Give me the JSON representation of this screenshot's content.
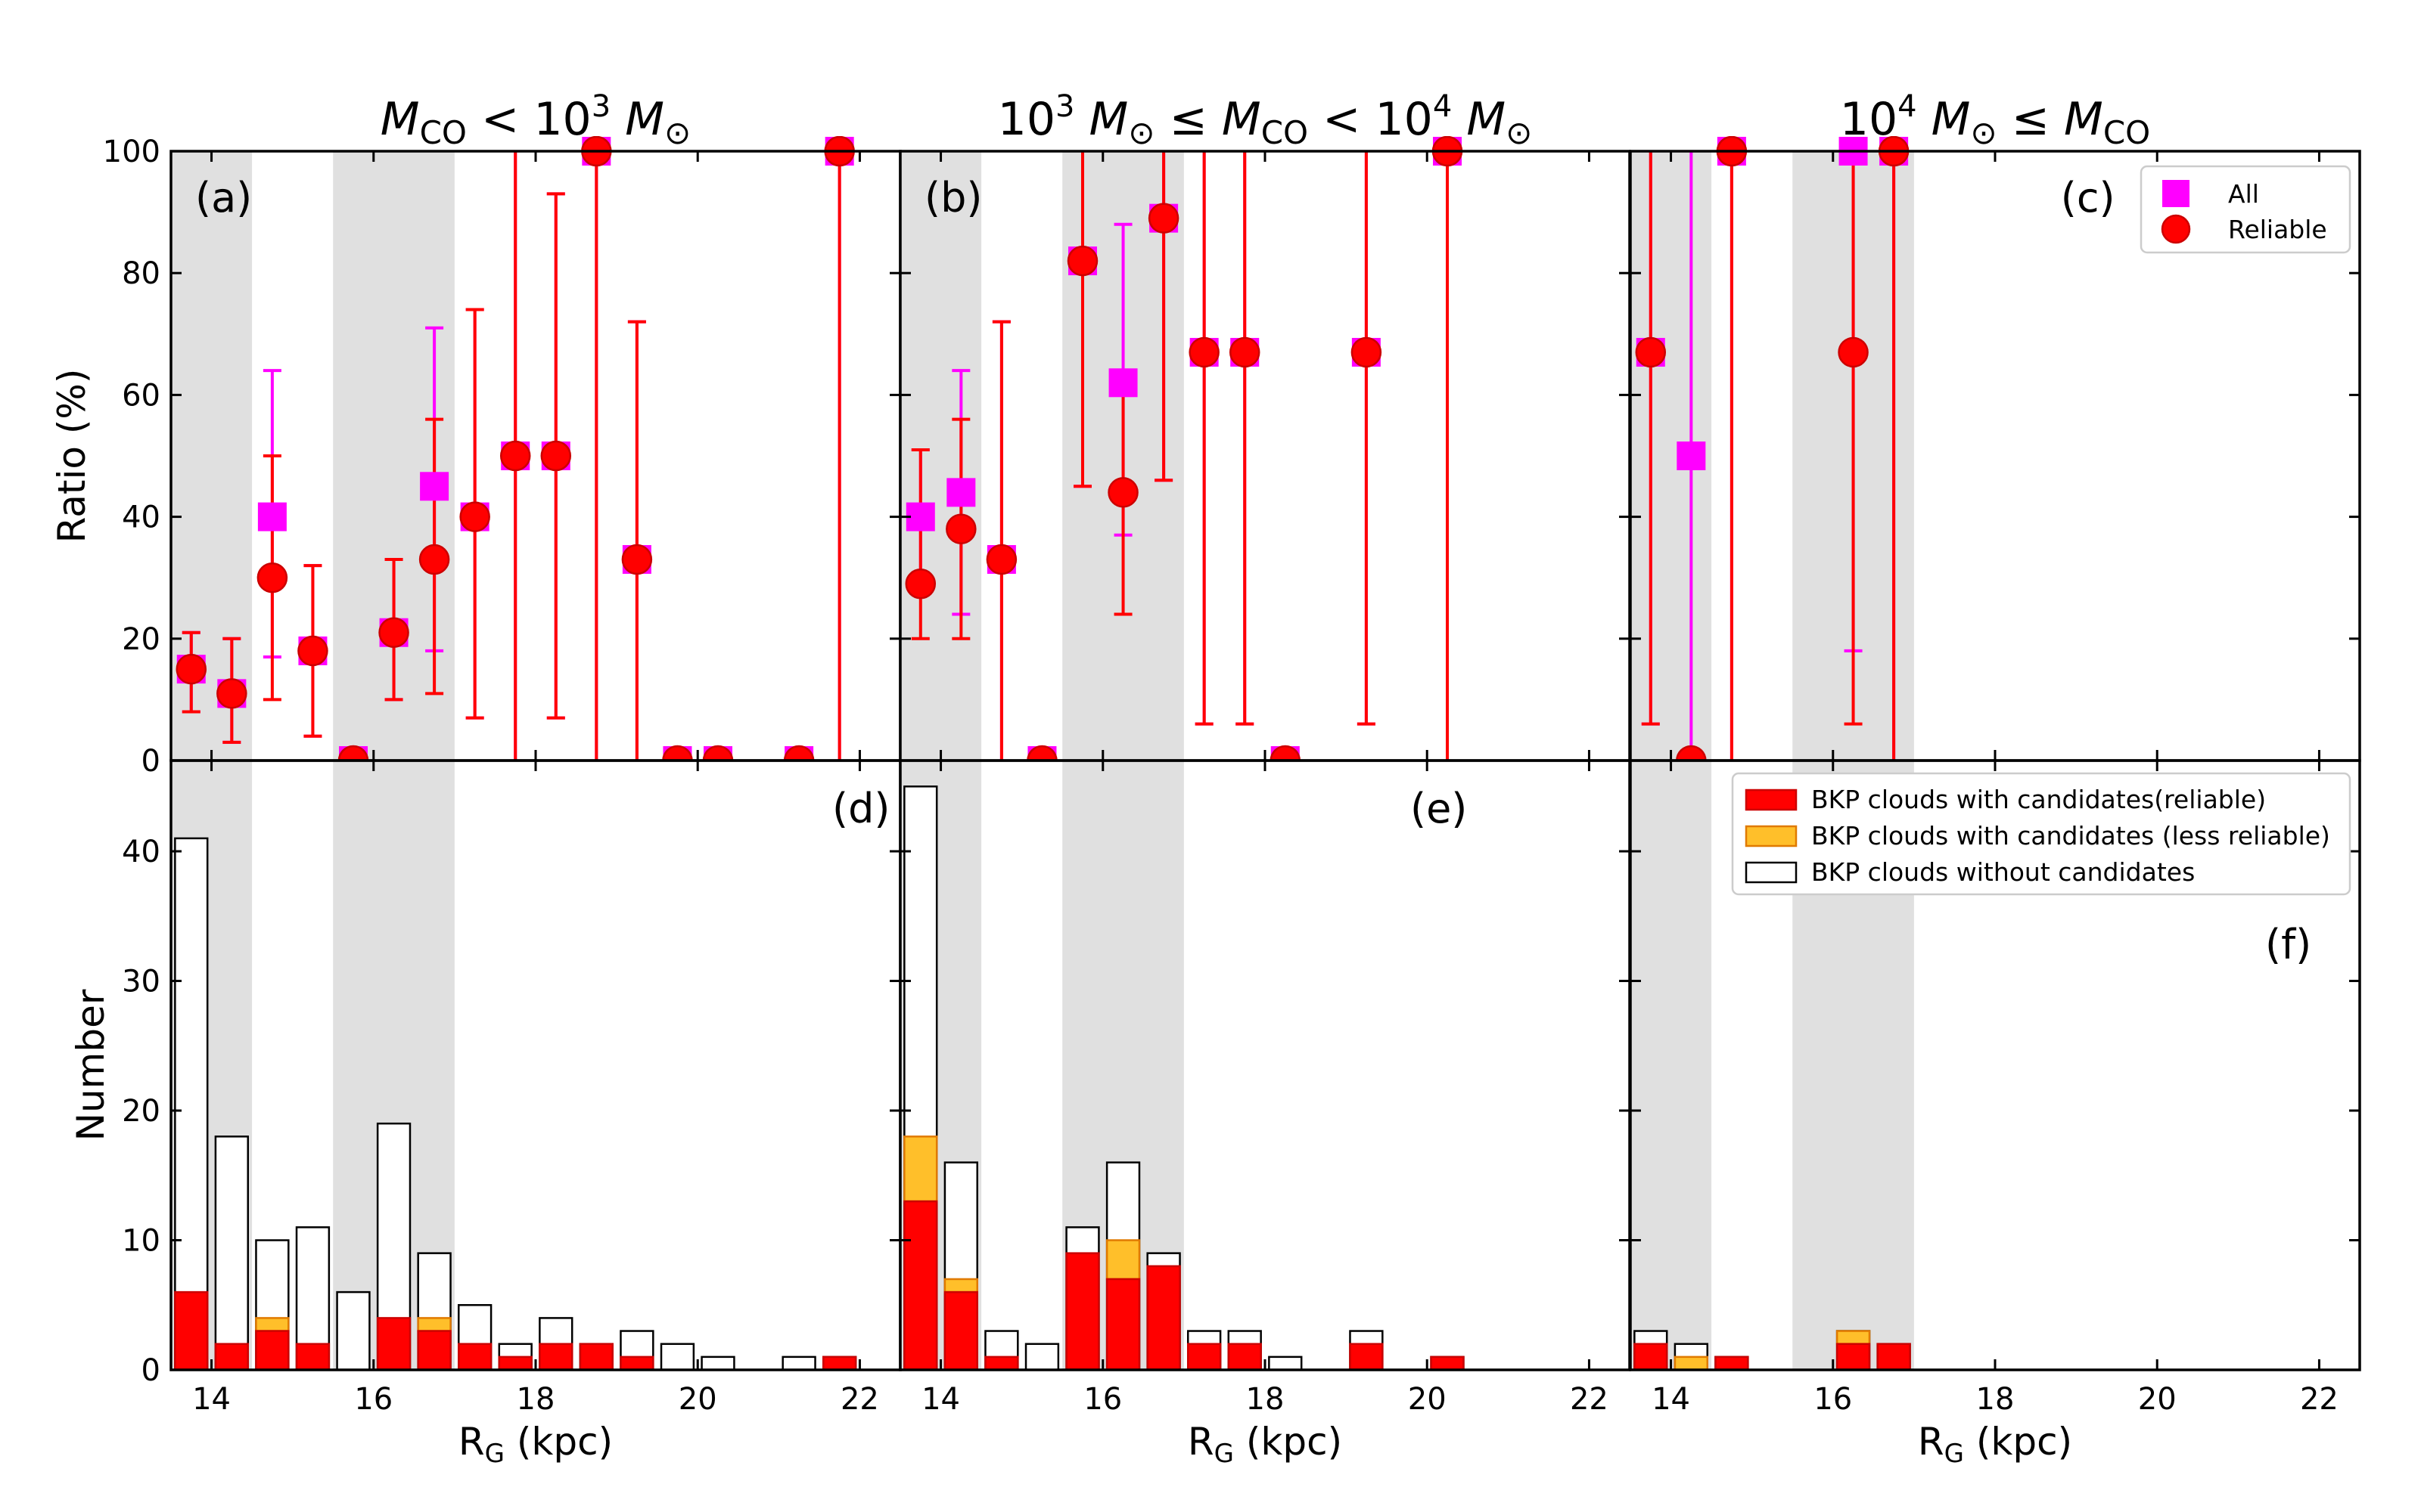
{
  "colors": {
    "shade": "#e0e0e0",
    "all": "#ff00ff",
    "reliable": "#ff0000",
    "reliable_edge": "#cc0000",
    "less_reliable": "#ffbf2a",
    "less_reliable_edge": "#e07a00",
    "without": "#ffffff"
  },
  "chart_data": {
    "type": "bar",
    "x_label": "R",
    "x_label_sub": "G",
    "x_label_unit": "(kpc)",
    "x_range": [
      13.5,
      22.5
    ],
    "x_ticks": [
      14,
      16,
      18,
      20,
      22
    ],
    "bar_width": 0.4,
    "shaded_ranges": [
      [
        13.5,
        14.5
      ],
      [
        15.5,
        17.0
      ]
    ],
    "top_y_label": "Ratio (%)",
    "top_y_range": [
      0,
      100
    ],
    "top_y_ticks": [
      0,
      20,
      40,
      60,
      80,
      100
    ],
    "bottom_y_label": "Number",
    "bottom_y_range": [
      0,
      47
    ],
    "bottom_y_ticks": [
      0,
      10,
      20,
      30,
      40
    ],
    "legend_top": [
      "All",
      "Reliable"
    ],
    "legend_bottom": [
      "BKP clouds with candidates(reliable)",
      "BKP clouds with candidates (less reliable)",
      "BKP clouds without candidates"
    ],
    "columns": [
      {
        "title": [
          "M",
          "CO",
          " < 10",
          "3",
          " M",
          "⊙"
        ],
        "letter_top": "(a)",
        "letter_bottom": "(d)",
        "ratio_all": [
          {
            "x": 13.75,
            "y": 15,
            "lo": 8,
            "hi": 21
          },
          {
            "x": 14.25,
            "y": 11,
            "lo": 3,
            "hi": 20
          },
          {
            "x": 14.75,
            "y": 40,
            "lo": 17,
            "hi": 64
          },
          {
            "x": 15.25,
            "y": 18,
            "lo": 4,
            "hi": 32
          },
          {
            "x": 15.75,
            "y": 0,
            "lo": 0,
            "hi": 0
          },
          {
            "x": 16.25,
            "y": 21,
            "lo": 10,
            "hi": 33
          },
          {
            "x": 16.75,
            "y": 45,
            "lo": 18,
            "hi": 71
          },
          {
            "x": 17.25,
            "y": 40,
            "lo": 7,
            "hi": 74
          },
          {
            "x": 17.75,
            "y": 50,
            "lo": 0,
            "hi": 100
          },
          {
            "x": 18.25,
            "y": 50,
            "lo": 7,
            "hi": 93
          },
          {
            "x": 18.75,
            "y": 100,
            "lo": 0,
            "hi": 100
          },
          {
            "x": 19.25,
            "y": 33,
            "lo": 0,
            "hi": 72
          },
          {
            "x": 19.75,
            "y": 0,
            "lo": 0,
            "hi": 0
          },
          {
            "x": 20.25,
            "y": 0,
            "lo": 0,
            "hi": 0
          },
          {
            "x": 21.25,
            "y": 0,
            "lo": 0,
            "hi": 0
          },
          {
            "x": 21.75,
            "y": 100,
            "lo": 0,
            "hi": 100
          }
        ],
        "ratio_reliable": [
          {
            "x": 13.75,
            "y": 15,
            "lo": 8,
            "hi": 21
          },
          {
            "x": 14.25,
            "y": 11,
            "lo": 3,
            "hi": 20
          },
          {
            "x": 14.75,
            "y": 30,
            "lo": 10,
            "hi": 50
          },
          {
            "x": 15.25,
            "y": 18,
            "lo": 4,
            "hi": 32
          },
          {
            "x": 15.75,
            "y": 0,
            "lo": 0,
            "hi": 0
          },
          {
            "x": 16.25,
            "y": 21,
            "lo": 10,
            "hi": 33
          },
          {
            "x": 16.75,
            "y": 33,
            "lo": 11,
            "hi": 56
          },
          {
            "x": 17.25,
            "y": 40,
            "lo": 7,
            "hi": 74
          },
          {
            "x": 17.75,
            "y": 50,
            "lo": 0,
            "hi": 100
          },
          {
            "x": 18.25,
            "y": 50,
            "lo": 7,
            "hi": 93
          },
          {
            "x": 18.75,
            "y": 100,
            "lo": 0,
            "hi": 100
          },
          {
            "x": 19.25,
            "y": 33,
            "lo": 0,
            "hi": 72
          },
          {
            "x": 19.75,
            "y": 0,
            "lo": 0,
            "hi": 0
          },
          {
            "x": 20.25,
            "y": 0,
            "lo": 0,
            "hi": 0
          },
          {
            "x": 21.25,
            "y": 0,
            "lo": 0,
            "hi": 0
          },
          {
            "x": 21.75,
            "y": 100,
            "lo": 0,
            "hi": 100
          }
        ],
        "bars": [
          {
            "x": 13.75,
            "reliable": 6,
            "less_reliable": 0,
            "total": 41
          },
          {
            "x": 14.25,
            "reliable": 2,
            "less_reliable": 0,
            "total": 18
          },
          {
            "x": 14.75,
            "reliable": 3,
            "less_reliable": 1,
            "total": 10
          },
          {
            "x": 15.25,
            "reliable": 2,
            "less_reliable": 0,
            "total": 11
          },
          {
            "x": 15.75,
            "reliable": 0,
            "less_reliable": 0,
            "total": 6
          },
          {
            "x": 16.25,
            "reliable": 4,
            "less_reliable": 0,
            "total": 19
          },
          {
            "x": 16.75,
            "reliable": 3,
            "less_reliable": 1,
            "total": 9
          },
          {
            "x": 17.25,
            "reliable": 2,
            "less_reliable": 0,
            "total": 5
          },
          {
            "x": 17.75,
            "reliable": 1,
            "less_reliable": 0,
            "total": 2
          },
          {
            "x": 18.25,
            "reliable": 2,
            "less_reliable": 0,
            "total": 4
          },
          {
            "x": 18.75,
            "reliable": 2,
            "less_reliable": 0,
            "total": 2
          },
          {
            "x": 19.25,
            "reliable": 1,
            "less_reliable": 0,
            "total": 3
          },
          {
            "x": 19.75,
            "reliable": 0,
            "less_reliable": 0,
            "total": 2
          },
          {
            "x": 20.25,
            "reliable": 0,
            "less_reliable": 0,
            "total": 1
          },
          {
            "x": 21.25,
            "reliable": 0,
            "less_reliable": 0,
            "total": 1
          },
          {
            "x": 21.75,
            "reliable": 1,
            "less_reliable": 0,
            "total": 1
          }
        ]
      },
      {
        "title": [
          "10",
          "3",
          " M",
          "⊙",
          " ≤ M",
          "CO",
          " < 10",
          "4",
          " M",
          "⊙"
        ],
        "letter_top": "(b)",
        "letter_bottom": "(e)",
        "ratio_all": [
          {
            "x": 13.75,
            "y": 40,
            "lo": 29,
            "hi": 51
          },
          {
            "x": 14.25,
            "y": 44,
            "lo": 24,
            "hi": 64
          },
          {
            "x": 14.75,
            "y": 33,
            "lo": 0,
            "hi": 72
          },
          {
            "x": 15.25,
            "y": 0,
            "lo": 0,
            "hi": 0
          },
          {
            "x": 15.75,
            "y": 82,
            "lo": 45,
            "hi": 100
          },
          {
            "x": 16.25,
            "y": 62,
            "lo": 37,
            "hi": 88
          },
          {
            "x": 16.75,
            "y": 89,
            "lo": 46,
            "hi": 100
          },
          {
            "x": 17.25,
            "y": 67,
            "lo": 6,
            "hi": 100
          },
          {
            "x": 17.75,
            "y": 67,
            "lo": 6,
            "hi": 100
          },
          {
            "x": 18.25,
            "y": 0,
            "lo": 0,
            "hi": 0
          },
          {
            "x": 19.25,
            "y": 67,
            "lo": 6,
            "hi": 100
          },
          {
            "x": 20.25,
            "y": 100,
            "lo": 0,
            "hi": 100
          }
        ],
        "ratio_reliable": [
          {
            "x": 13.75,
            "y": 29,
            "lo": 20,
            "hi": 51
          },
          {
            "x": 14.25,
            "y": 38,
            "lo": 20,
            "hi": 56
          },
          {
            "x": 14.75,
            "y": 33,
            "lo": 0,
            "hi": 72
          },
          {
            "x": 15.25,
            "y": 0,
            "lo": 0,
            "hi": 0
          },
          {
            "x": 15.75,
            "y": 82,
            "lo": 45,
            "hi": 100
          },
          {
            "x": 16.25,
            "y": 44,
            "lo": 24,
            "hi": 62
          },
          {
            "x": 16.75,
            "y": 89,
            "lo": 46,
            "hi": 100
          },
          {
            "x": 17.25,
            "y": 67,
            "lo": 6,
            "hi": 100
          },
          {
            "x": 17.75,
            "y": 67,
            "lo": 6,
            "hi": 100
          },
          {
            "x": 18.25,
            "y": 0,
            "lo": 0,
            "hi": 0
          },
          {
            "x": 19.25,
            "y": 67,
            "lo": 6,
            "hi": 100
          },
          {
            "x": 20.25,
            "y": 100,
            "lo": 0,
            "hi": 100
          }
        ],
        "bars": [
          {
            "x": 13.75,
            "reliable": 13,
            "less_reliable": 5,
            "total": 45
          },
          {
            "x": 14.25,
            "reliable": 6,
            "less_reliable": 1,
            "total": 16
          },
          {
            "x": 14.75,
            "reliable": 1,
            "less_reliable": 0,
            "total": 3
          },
          {
            "x": 15.25,
            "reliable": 0,
            "less_reliable": 0,
            "total": 2
          },
          {
            "x": 15.75,
            "reliable": 9,
            "less_reliable": 0,
            "total": 11
          },
          {
            "x": 16.25,
            "reliable": 7,
            "less_reliable": 3,
            "total": 16
          },
          {
            "x": 16.75,
            "reliable": 8,
            "less_reliable": 0,
            "total": 9
          },
          {
            "x": 17.25,
            "reliable": 2,
            "less_reliable": 0,
            "total": 3
          },
          {
            "x": 17.75,
            "reliable": 2,
            "less_reliable": 0,
            "total": 3
          },
          {
            "x": 18.25,
            "reliable": 0,
            "less_reliable": 0,
            "total": 1
          },
          {
            "x": 19.25,
            "reliable": 2,
            "less_reliable": 0,
            "total": 3
          },
          {
            "x": 20.25,
            "reliable": 1,
            "less_reliable": 0,
            "total": 1
          }
        ]
      },
      {
        "title": [
          "10",
          "4",
          " M",
          "⊙",
          " ≤ M",
          "CO"
        ],
        "letter_top": "(c)",
        "letter_bottom": "(f)",
        "ratio_all": [
          {
            "x": 13.75,
            "y": 67,
            "lo": 6,
            "hi": 100
          },
          {
            "x": 14.25,
            "y": 50,
            "lo": 0,
            "hi": 100
          },
          {
            "x": 14.75,
            "y": 100,
            "lo": 0,
            "hi": 100
          },
          {
            "x": 16.25,
            "y": 100,
            "lo": 18,
            "hi": 100
          },
          {
            "x": 16.75,
            "y": 100,
            "lo": 0,
            "hi": 100
          }
        ],
        "ratio_reliable": [
          {
            "x": 13.75,
            "y": 67,
            "lo": 6,
            "hi": 100
          },
          {
            "x": 14.25,
            "y": 0,
            "lo": 0,
            "hi": 0
          },
          {
            "x": 14.75,
            "y": 100,
            "lo": 0,
            "hi": 100
          },
          {
            "x": 16.25,
            "y": 67,
            "lo": 6,
            "hi": 100
          },
          {
            "x": 16.75,
            "y": 100,
            "lo": 0,
            "hi": 100
          }
        ],
        "bars": [
          {
            "x": 13.75,
            "reliable": 2,
            "less_reliable": 0,
            "total": 3
          },
          {
            "x": 14.25,
            "reliable": 0,
            "less_reliable": 1,
            "total": 2
          },
          {
            "x": 14.75,
            "reliable": 1,
            "less_reliable": 0,
            "total": 1
          },
          {
            "x": 16.25,
            "reliable": 2,
            "less_reliable": 1,
            "total": 3
          },
          {
            "x": 16.75,
            "reliable": 2,
            "less_reliable": 0,
            "total": 2
          }
        ]
      }
    ]
  }
}
